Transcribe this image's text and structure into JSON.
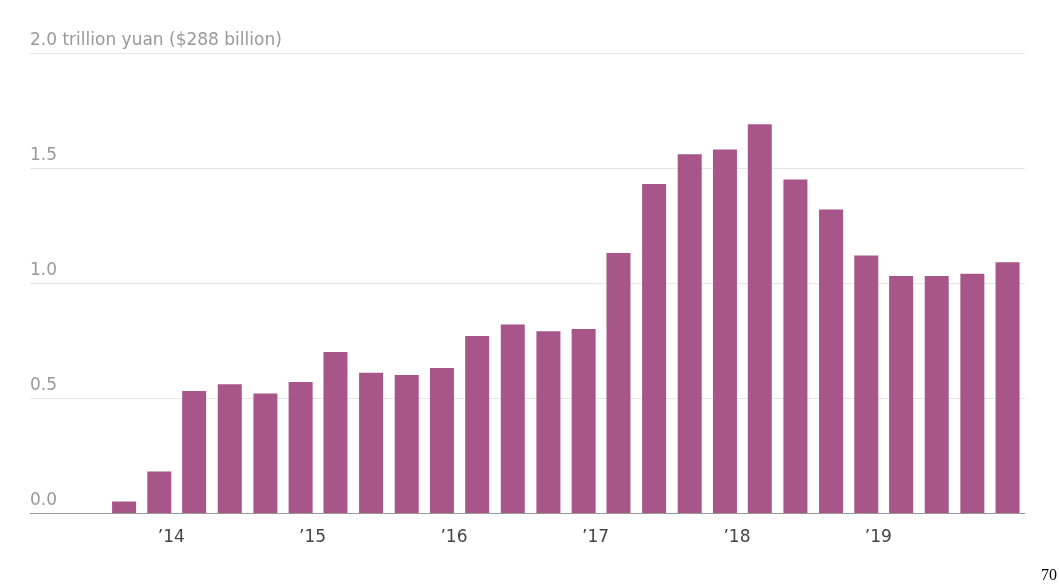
{
  "chart_data": {
    "type": "bar",
    "x": [
      "2013-09",
      "2013-12",
      "2014-03",
      "2014-06",
      "2014-09",
      "2014-12",
      "2015-03",
      "2015-06",
      "2015-09",
      "2015-12",
      "2016-03",
      "2016-06",
      "2016-09",
      "2016-12",
      "2017-03",
      "2017-06",
      "2017-09",
      "2017-12",
      "2018-03",
      "2018-06",
      "2018-09",
      "2018-12",
      "2019-03",
      "2019-06",
      "2019-09",
      "2019-12"
    ],
    "series": [
      {
        "color": "#a8568a",
        "values": [
          0.05,
          0.18,
          0.53,
          0.56,
          0.52,
          0.57,
          0.7,
          0.61,
          0.6,
          0.63,
          0.77,
          0.82,
          0.79,
          0.8,
          1.13,
          1.43,
          1.56,
          1.58,
          1.69,
          1.45,
          1.32,
          1.12,
          1.03,
          1.03,
          1.04,
          1.09
        ]
      }
    ],
    "xlim": [
      "2013-01-01",
      "2020-01-15"
    ],
    "xticks": [
      {
        "value": "2014",
        "label": "’14"
      },
      {
        "value": "2015",
        "label": "’15"
      },
      {
        "value": "2016",
        "label": "’16"
      },
      {
        "value": "2017",
        "label": "’17"
      },
      {
        "value": "2018",
        "label": "’18"
      },
      {
        "value": "2019",
        "label": "’19"
      }
    ],
    "ylim": [
      0,
      2
    ],
    "yticks": [
      {
        "value": 0,
        "label": "0.0"
      },
      {
        "value": 0.5,
        "label": "0.5"
      },
      {
        "value": 1,
        "label": "1.0"
      },
      {
        "value": 1.5,
        "label": "1.5"
      },
      {
        "value": 2,
        "label": "2.0 trillion yuan ($288 billion)"
      }
    ],
    "grid": "y",
    "annotations": [
      "70"
    ]
  }
}
